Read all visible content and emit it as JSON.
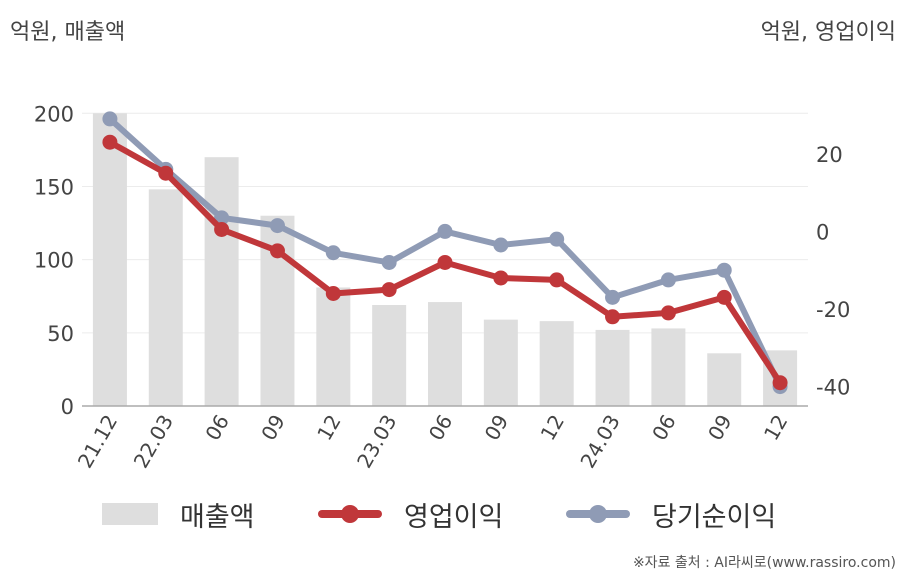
{
  "left_axis_title": "억원, 매출액",
  "right_axis_title": "억원, 영업이익",
  "source": "※자료 출처 : AI라씨로(www.rassiro.com)",
  "colors": {
    "revenue": "#dedede",
    "operating_profit": "#c0373a",
    "net_profit": "#8f9bb5",
    "grid": "#ececec",
    "axis": "#aaaaaa"
  },
  "legend": [
    {
      "key": "revenue",
      "label": "매출액"
    },
    {
      "key": "operating_profit",
      "label": "영업이익"
    },
    {
      "key": "net_profit",
      "label": "당기순이익"
    }
  ],
  "chart_data": {
    "type": "bar",
    "categories": [
      "21.12",
      "22.03",
      "06",
      "09",
      "12",
      "23.03",
      "06",
      "09",
      "12",
      "24.03",
      "06",
      "09",
      "12"
    ],
    "series": [
      {
        "name": "매출액",
        "type": "bar",
        "axis": "left",
        "values": [
          200,
          148,
          170,
          130,
          81,
          69,
          71,
          59,
          58,
          52,
          53,
          36,
          38
        ]
      },
      {
        "name": "영업이익",
        "type": "line",
        "axis": "right",
        "values": [
          23,
          15,
          0.5,
          -5,
          -16,
          -15,
          -8,
          -12,
          -12.5,
          -22,
          -21,
          -17,
          -39
        ]
      },
      {
        "name": "당기순이익",
        "type": "line",
        "axis": "right",
        "values": [
          29,
          16,
          3.5,
          1.5,
          -5.5,
          -8,
          0,
          -3.5,
          -2,
          -17,
          -12.5,
          -10,
          -40
        ]
      }
    ],
    "left_axis": {
      "ticks": [
        0,
        50,
        100,
        150,
        200
      ],
      "ylim": [
        0,
        220
      ]
    },
    "right_axis": {
      "ticks": [
        -40,
        -20,
        0,
        20
      ],
      "ylim": [
        -45,
        38
      ]
    },
    "grid": true,
    "legend_position": "bottom"
  }
}
